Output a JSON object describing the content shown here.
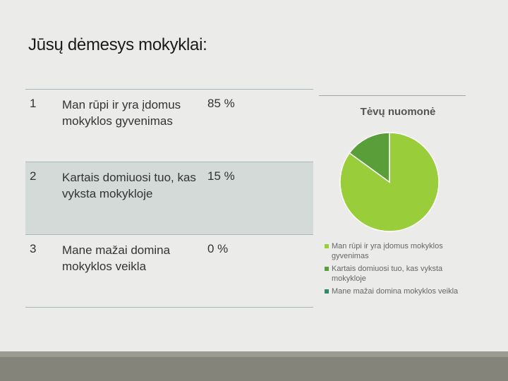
{
  "slide": {
    "title": "Jūsų dėmesys mokyklai:"
  },
  "table": {
    "rows": [
      {
        "num": "1",
        "text": "Man rūpi ir yra įdomus mokyklos gyvenimas",
        "pct": "85 %"
      },
      {
        "num": "2",
        "text": "Kartais domiuosi tuo, kas vyksta mokykloje",
        "pct": "15 %"
      },
      {
        "num": "3",
        "text": "Mane mažai domina mokyklos veikla",
        "pct": "0 %"
      }
    ]
  },
  "chart_data": {
    "type": "pie",
    "title": "Tėvų nuomonė",
    "categories": [
      "Man rūpi ir yra įdomus mokyklos gyvenimas",
      "Kartais domiuosi tuo, kas vyksta mokykloje",
      "Mane mažai domina mokyklos veikla"
    ],
    "values": [
      85,
      15,
      0
    ],
    "colors": [
      "#9acd3a",
      "#5a9e3a",
      "#2e8b6a"
    ],
    "legend": "bottom"
  }
}
